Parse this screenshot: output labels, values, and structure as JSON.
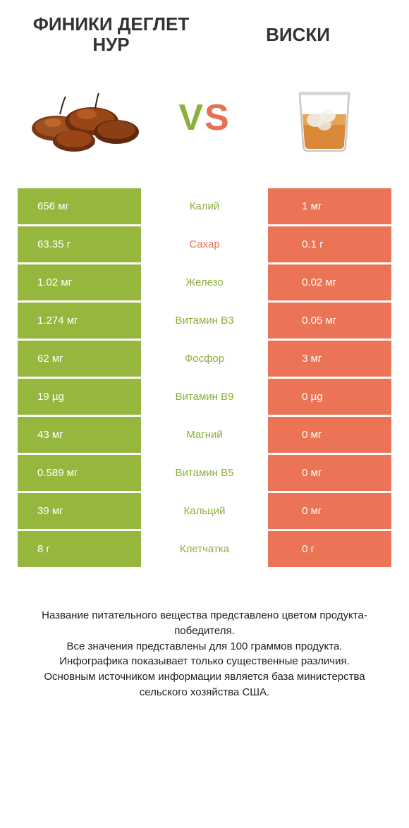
{
  "colors": {
    "left_bg": "#96b73e",
    "right_bg": "#ec7456",
    "left_text": "#8aaf3a",
    "right_text": "#e67052",
    "mid_default": "#555555"
  },
  "header": {
    "left_title": "ФИНИКИ ДЕГЛЕТ НУР",
    "right_title": "ВИСКИ",
    "vs_v": "V",
    "vs_s": "S"
  },
  "rows": [
    {
      "left": "656 мг",
      "mid": "Калий",
      "right": "1 мг",
      "winner": "left"
    },
    {
      "left": "63.35 г",
      "mid": "Сахар",
      "right": "0.1 г",
      "winner": "right"
    },
    {
      "left": "1.02 мг",
      "mid": "Железо",
      "right": "0.02 мг",
      "winner": "left"
    },
    {
      "left": "1.274 мг",
      "mid": "Витамин B3",
      "right": "0.05 мг",
      "winner": "left"
    },
    {
      "left": "62 мг",
      "mid": "Фосфор",
      "right": "3 мг",
      "winner": "left"
    },
    {
      "left": "19 µg",
      "mid": "Витамин B9",
      "right": "0 µg",
      "winner": "left"
    },
    {
      "left": "43 мг",
      "mid": "Магний",
      "right": "0 мг",
      "winner": "left"
    },
    {
      "left": "0.589 мг",
      "mid": "Витамин B5",
      "right": "0 мг",
      "winner": "left"
    },
    {
      "left": "39 мг",
      "mid": "Кальций",
      "right": "0 мг",
      "winner": "left"
    },
    {
      "left": "8 г",
      "mid": "Клетчатка",
      "right": "0 г",
      "winner": "left"
    }
  ],
  "footer": {
    "line1": "Название питательного вещества представлено цветом продукта-победителя.",
    "line2": "Все значения представлены для 100 граммов продукта.",
    "line3": "Инфографика показывает только существенные различия.",
    "line4": "Основным источником информации является база министерства сельского хозяйства США."
  }
}
